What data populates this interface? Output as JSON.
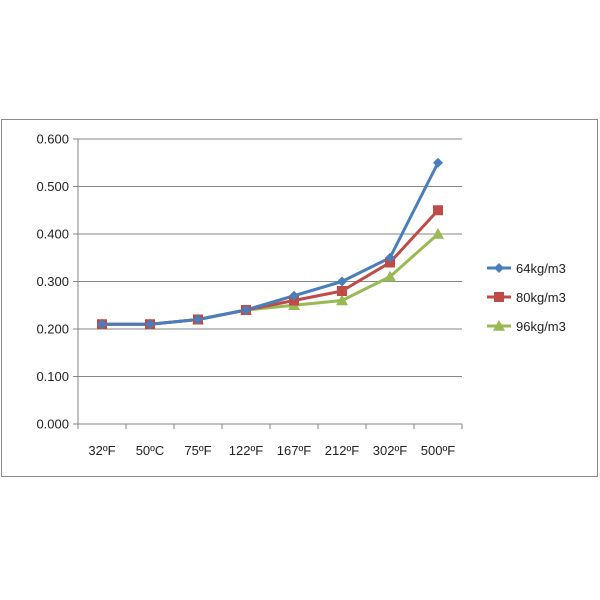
{
  "chart_data": {
    "type": "line",
    "categories": [
      "32ºF",
      "50ºC",
      "75ºF",
      "122ºF",
      "167ºF",
      "212ºF",
      "302ºF",
      "500ºF"
    ],
    "yticks": [
      "0.000",
      "0.100",
      "0.200",
      "0.300",
      "0.400",
      "0.500",
      "0.600"
    ],
    "ylim": [
      0,
      0.6
    ],
    "grid": true,
    "legend_position": "right",
    "series": [
      {
        "name": "64kg/m3",
        "color": "#4a7ebb",
        "marker": "diamond",
        "values": [
          0.21,
          0.21,
          0.22,
          0.24,
          0.27,
          0.3,
          0.35,
          0.55
        ]
      },
      {
        "name": "80kg/m3",
        "color": "#be4b48",
        "marker": "square",
        "values": [
          0.21,
          0.21,
          0.22,
          0.24,
          0.26,
          0.28,
          0.34,
          0.45
        ]
      },
      {
        "name": "96kg/m3",
        "color": "#98b954",
        "marker": "triangle",
        "values": [
          0.21,
          0.21,
          0.22,
          0.24,
          0.25,
          0.26,
          0.31,
          0.4
        ]
      }
    ]
  }
}
